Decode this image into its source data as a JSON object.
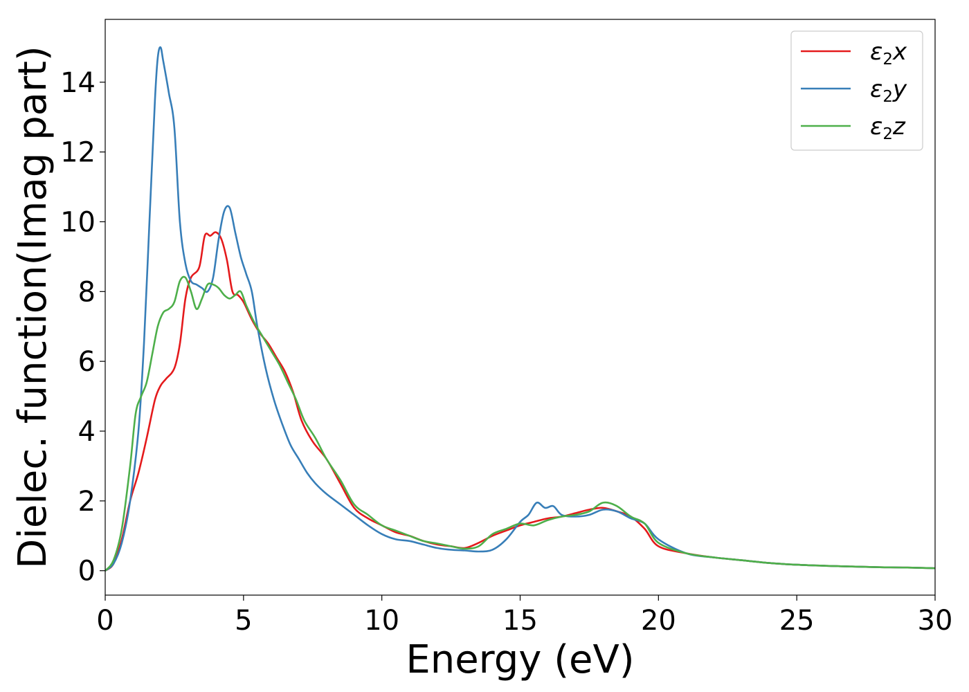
{
  "chart_data": {
    "type": "line",
    "title": "",
    "xlabel": "Energy (eV)",
    "ylabel": "Dielec. function(Imag part)",
    "xlim": [
      0,
      30
    ],
    "ylim": [
      -0.7,
      15.8
    ],
    "xticks": [
      0,
      5,
      10,
      15,
      20,
      25,
      30
    ],
    "yticks": [
      0,
      2,
      4,
      6,
      8,
      10,
      12,
      14
    ],
    "xtick_labels": [
      "0",
      "5",
      "10",
      "15",
      "20",
      "25",
      "30"
    ],
    "ytick_labels": [
      "0",
      "2",
      "4",
      "6",
      "8",
      "10",
      "12",
      "14"
    ],
    "grid": false,
    "legend_position": "top-right",
    "series": [
      {
        "name": "ε2x",
        "legend_base": "ε",
        "legend_sub": "2",
        "legend_var": "x",
        "color": "#e41a1c",
        "x": [
          0,
          0.3,
          0.6,
          0.9,
          1.2,
          1.5,
          1.8,
          2.0,
          2.2,
          2.5,
          2.7,
          2.9,
          3.1,
          3.4,
          3.6,
          3.8,
          4.0,
          4.2,
          4.4,
          4.6,
          4.8,
          5.0,
          5.3,
          5.6,
          5.9,
          6.2,
          6.5,
          6.8,
          7.1,
          7.5,
          8.0,
          8.5,
          9.0,
          9.5,
          10.0,
          10.5,
          11.0,
          11.5,
          12.0,
          12.5,
          13.0,
          13.5,
          14.0,
          14.5,
          15.0,
          15.5,
          16.0,
          16.5,
          17.0,
          17.5,
          18.0,
          18.5,
          19.0,
          19.5,
          20.0,
          21.0,
          22.0,
          23.0,
          24.0,
          25.0,
          26.0,
          27.0,
          28.0,
          29.0,
          30.0
        ],
        "values": [
          0.0,
          0.2,
          0.9,
          2.0,
          2.8,
          3.8,
          4.9,
          5.3,
          5.5,
          5.8,
          6.5,
          7.8,
          8.4,
          8.7,
          9.6,
          9.6,
          9.7,
          9.5,
          8.9,
          8.0,
          7.9,
          7.7,
          7.2,
          6.8,
          6.5,
          6.1,
          5.7,
          5.1,
          4.3,
          3.7,
          3.2,
          2.5,
          1.8,
          1.5,
          1.3,
          1.1,
          1.0,
          0.85,
          0.75,
          0.7,
          0.65,
          0.8,
          1.0,
          1.15,
          1.3,
          1.4,
          1.5,
          1.55,
          1.65,
          1.75,
          1.8,
          1.7,
          1.55,
          1.2,
          0.7,
          0.5,
          0.38,
          0.3,
          0.22,
          0.17,
          0.14,
          0.12,
          0.1,
          0.09,
          0.07
        ]
      },
      {
        "name": "ε2y",
        "legend_base": "ε",
        "legend_sub": "2",
        "legend_var": "y",
        "color": "#377eb8",
        "x": [
          0,
          0.3,
          0.6,
          0.9,
          1.2,
          1.4,
          1.6,
          1.8,
          1.9,
          2.0,
          2.1,
          2.3,
          2.5,
          2.7,
          2.9,
          3.1,
          3.3,
          3.5,
          3.7,
          3.9,
          4.1,
          4.3,
          4.5,
          4.7,
          4.9,
          5.1,
          5.3,
          5.5,
          5.8,
          6.1,
          6.4,
          6.7,
          7.0,
          7.3,
          7.6,
          8.0,
          8.5,
          9.0,
          9.5,
          10.0,
          10.5,
          11.0,
          11.5,
          12.0,
          12.5,
          13.0,
          13.5,
          14.0,
          14.5,
          15.0,
          15.3,
          15.6,
          15.9,
          16.2,
          16.5,
          17.0,
          17.5,
          18.0,
          18.5,
          19.0,
          19.5,
          20.0,
          21.0,
          22.0,
          23.0,
          24.0,
          25.0,
          26.0,
          27.0,
          28.0,
          29.0,
          30.0
        ],
        "values": [
          0.0,
          0.2,
          0.8,
          2.0,
          4.0,
          6.5,
          10.0,
          13.5,
          14.7,
          15.0,
          14.6,
          13.7,
          12.7,
          10.0,
          8.8,
          8.3,
          8.2,
          8.1,
          8.0,
          8.4,
          9.5,
          10.3,
          10.4,
          9.7,
          9.0,
          8.5,
          8.0,
          7.0,
          5.8,
          4.9,
          4.2,
          3.6,
          3.2,
          2.8,
          2.5,
          2.2,
          1.9,
          1.6,
          1.3,
          1.05,
          0.9,
          0.85,
          0.75,
          0.65,
          0.6,
          0.58,
          0.55,
          0.6,
          0.9,
          1.4,
          1.6,
          1.95,
          1.8,
          1.85,
          1.6,
          1.55,
          1.6,
          1.75,
          1.7,
          1.5,
          1.35,
          0.9,
          0.5,
          0.38,
          0.3,
          0.22,
          0.17,
          0.14,
          0.12,
          0.1,
          0.09,
          0.07
        ]
      },
      {
        "name": "ε2z",
        "legend_base": "ε",
        "legend_sub": "2",
        "legend_var": "z",
        "color": "#4daf4a",
        "x": [
          0,
          0.3,
          0.6,
          0.9,
          1.1,
          1.3,
          1.5,
          1.7,
          1.9,
          2.1,
          2.3,
          2.5,
          2.7,
          2.9,
          3.1,
          3.3,
          3.5,
          3.7,
          3.9,
          4.1,
          4.3,
          4.5,
          4.7,
          4.9,
          5.1,
          5.4,
          5.7,
          6.0,
          6.3,
          6.6,
          6.9,
          7.2,
          7.6,
          8.0,
          8.5,
          9.0,
          9.5,
          10.0,
          10.5,
          11.0,
          11.5,
          12.0,
          12.5,
          13.0,
          13.5,
          14.0,
          14.5,
          15.0,
          15.5,
          16.0,
          16.5,
          17.0,
          17.5,
          18.0,
          18.5,
          19.0,
          19.5,
          20.0,
          21.0,
          22.0,
          23.0,
          24.0,
          25.0,
          26.0,
          27.0,
          28.0,
          29.0,
          30.0
        ],
        "values": [
          0.0,
          0.3,
          1.2,
          3.0,
          4.5,
          5.0,
          5.4,
          6.2,
          7.0,
          7.4,
          7.5,
          7.7,
          8.3,
          8.4,
          8.0,
          7.5,
          7.8,
          8.2,
          8.2,
          8.1,
          7.9,
          7.8,
          7.9,
          8.0,
          7.6,
          7.1,
          6.7,
          6.3,
          5.9,
          5.4,
          4.9,
          4.3,
          3.8,
          3.2,
          2.6,
          1.9,
          1.6,
          1.3,
          1.15,
          1.0,
          0.85,
          0.78,
          0.7,
          0.63,
          0.7,
          1.05,
          1.2,
          1.35,
          1.3,
          1.45,
          1.55,
          1.6,
          1.7,
          1.95,
          1.85,
          1.55,
          1.35,
          0.8,
          0.5,
          0.38,
          0.3,
          0.22,
          0.17,
          0.14,
          0.12,
          0.1,
          0.09,
          0.07
        ]
      }
    ]
  }
}
